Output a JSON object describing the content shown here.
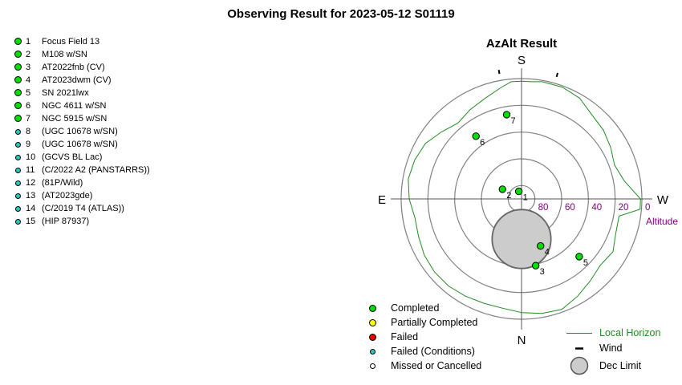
{
  "title": "Observing Result for 2023-05-12 S01119",
  "targets": [
    {
      "num": "1",
      "name": "Focus Field 13",
      "status": "completed"
    },
    {
      "num": "2",
      "name": "M108 w/SN",
      "status": "completed"
    },
    {
      "num": "3",
      "name": "AT2022fnb (CV)",
      "status": "completed"
    },
    {
      "num": "4",
      "name": "AT2023dwm (CV)",
      "status": "completed"
    },
    {
      "num": "5",
      "name": "SN 2021lwx",
      "status": "completed"
    },
    {
      "num": "6",
      "name": "NGC 4611 w/SN",
      "status": "completed"
    },
    {
      "num": "7",
      "name": "NGC 5915 w/SN",
      "status": "completed"
    },
    {
      "num": "8",
      "name": " (UGC 10678 w/SN)",
      "status": "failed_conditions"
    },
    {
      "num": "9",
      "name": " (UGC 10678 w/SN)",
      "status": "failed_conditions"
    },
    {
      "num": "10",
      "name": " (GCVS BL Lac)",
      "status": "failed_conditions"
    },
    {
      "num": "11",
      "name": " (C/2022 A2 (PANSTARRS))",
      "status": "failed_conditions"
    },
    {
      "num": "12",
      "name": " (81P/Wild)",
      "status": "failed_conditions"
    },
    {
      "num": "13",
      "name": " (AT2023gde)",
      "status": "failed_conditions"
    },
    {
      "num": "14",
      "name": " (C/2019 T4 (ATLAS))",
      "status": "failed_conditions"
    },
    {
      "num": "15",
      "name": " (HIP 87937)",
      "status": "failed_conditions"
    }
  ],
  "status_colors": {
    "completed": "#00dd00",
    "partially_completed": "#ffff00",
    "failed": "#ee0000",
    "failed_conditions": "#22cccc",
    "missed": "#ffffff"
  },
  "legend": {
    "completed": "Completed",
    "partially_completed": "Partially Completed",
    "failed": "Failed",
    "failed_conditions": "Failed (Conditions)",
    "missed": "Missed or Cancelled",
    "local_horizon": "Local Horizon",
    "wind": "Wind",
    "dec_limit": "Dec Limit"
  },
  "chart_data": {
    "type": "scatter",
    "projection": "polar-azalt",
    "title": "AzAlt Result",
    "directions": {
      "top": "S",
      "bottom": "N",
      "left": "E",
      "right": "W"
    },
    "altitude_label": "Altitude",
    "altitude_ticks": [
      80,
      60,
      40,
      20,
      0
    ],
    "altitude_rings": [
      80,
      60,
      40,
      20,
      0
    ],
    "altitude_tick_color": "#800080",
    "horizon_color": "#228b22",
    "points": [
      {
        "label": "1",
        "az": 160,
        "alt": 84,
        "status": "completed"
      },
      {
        "label": "2",
        "az": 117,
        "alt": 74,
        "status": "completed"
      },
      {
        "label": "3",
        "az": 348,
        "alt": 39,
        "status": "completed"
      },
      {
        "label": "4",
        "az": 338,
        "alt": 52,
        "status": "completed"
      },
      {
        "label": "5",
        "az": 315,
        "alt": 29,
        "status": "completed"
      },
      {
        "label": "6",
        "az": 144,
        "alt": 32,
        "status": "completed"
      },
      {
        "label": "7",
        "az": 170,
        "alt": 26,
        "status": "completed"
      }
    ],
    "dec_limit": {
      "az": 0,
      "alt": 60,
      "radius_alt": 22
    },
    "wind": [
      {
        "az": 170
      },
      {
        "az": 196
      }
    ],
    "local_horizon": [
      {
        "az": 0,
        "alt": 5
      },
      {
        "az": 10,
        "alt": 7
      },
      {
        "az": 20,
        "alt": 7
      },
      {
        "az": 30,
        "alt": 6
      },
      {
        "az": 40,
        "alt": 5
      },
      {
        "az": 50,
        "alt": 5
      },
      {
        "az": 60,
        "alt": 6
      },
      {
        "az": 70,
        "alt": 8
      },
      {
        "az": 80,
        "alt": 9
      },
      {
        "az": 90,
        "alt": 6
      },
      {
        "az": 100,
        "alt": 4
      },
      {
        "az": 110,
        "alt": 5
      },
      {
        "az": 120,
        "alt": 7
      },
      {
        "az": 130,
        "alt": 12
      },
      {
        "az": 140,
        "alt": 16
      },
      {
        "az": 150,
        "alt": 13
      },
      {
        "az": 160,
        "alt": 10
      },
      {
        "az": 170,
        "alt": 5
      },
      {
        "az": 175,
        "alt": 2
      },
      {
        "az": 180,
        "alt": 2
      },
      {
        "az": 185,
        "alt": 2
      },
      {
        "az": 190,
        "alt": 1
      },
      {
        "az": 200,
        "alt": 1
      },
      {
        "az": 210,
        "alt": 3
      },
      {
        "az": 220,
        "alt": 8
      },
      {
        "az": 230,
        "alt": 10
      },
      {
        "az": 240,
        "alt": 13
      },
      {
        "az": 250,
        "alt": 16
      },
      {
        "az": 260,
        "alt": 12
      },
      {
        "az": 270,
        "alt": 1
      },
      {
        "az": 275,
        "alt": 1
      },
      {
        "az": 280,
        "alt": 16
      },
      {
        "az": 290,
        "alt": 15
      },
      {
        "az": 300,
        "alt": 11
      },
      {
        "az": 310,
        "alt": 13
      },
      {
        "az": 320,
        "alt": 10
      },
      {
        "az": 330,
        "alt": 6
      },
      {
        "az": 340,
        "alt": 2
      },
      {
        "az": 350,
        "alt": 3
      },
      {
        "az": 360,
        "alt": 5
      }
    ]
  }
}
